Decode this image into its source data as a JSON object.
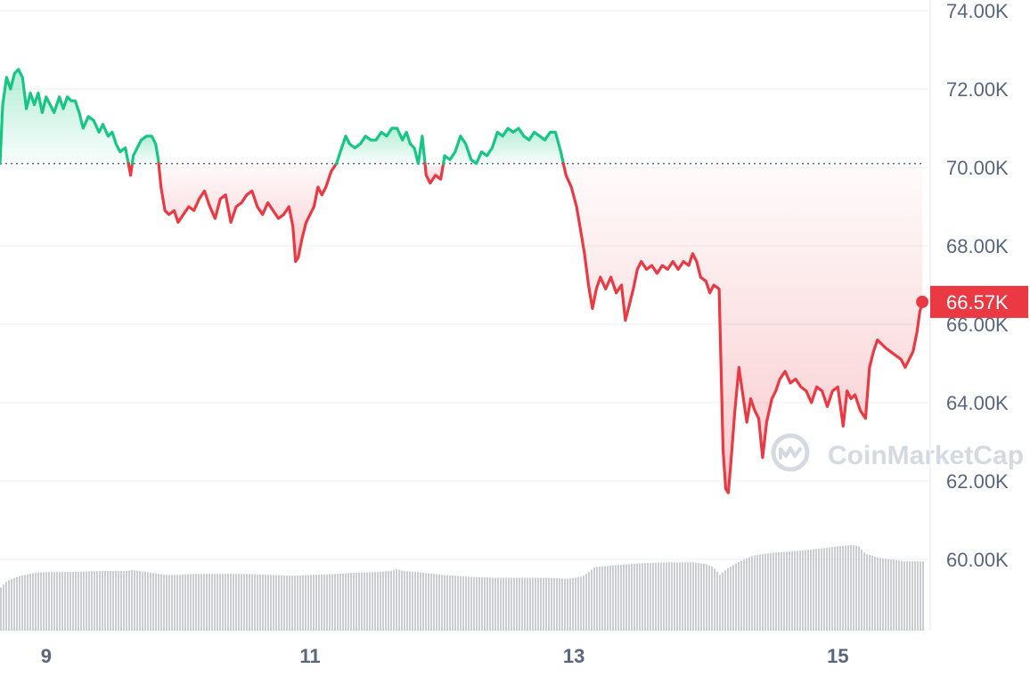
{
  "chart_data": {
    "type": "line",
    "title": "",
    "xlabel": "",
    "ylabel": "",
    "x_ticks": [
      "9",
      "11",
      "13",
      "15"
    ],
    "x_tick_values": [
      9,
      11,
      13,
      15
    ],
    "x_range": [
      8.65,
      15.7
    ],
    "y_ticks": [
      "74.00K",
      "72.00K",
      "70.00K",
      "68.00K",
      "66.00K",
      "64.00K",
      "62.00K",
      "60.00K"
    ],
    "y_tick_values": [
      74000,
      72000,
      70000,
      68000,
      66000,
      64000,
      62000,
      60000
    ],
    "ylim": [
      58700,
      74300
    ],
    "baseline": 70100,
    "grid": true,
    "current_price_label": "66.57K",
    "current_price": 66570,
    "colors": {
      "up": "#16c784",
      "down": "#ea3943",
      "grid": "#eff2f5",
      "axis_text": "#58667e",
      "volume": "#c9ccd1"
    },
    "series": [
      {
        "values": [
          [
            8.65,
            70100
          ],
          [
            8.67,
            71600
          ],
          [
            8.7,
            72300
          ],
          [
            8.73,
            72000
          ],
          [
            8.76,
            72400
          ],
          [
            8.79,
            72500
          ],
          [
            8.82,
            72300
          ],
          [
            8.85,
            71500
          ],
          [
            8.88,
            71900
          ],
          [
            8.91,
            71600
          ],
          [
            8.94,
            71900
          ],
          [
            8.97,
            71400
          ],
          [
            9.0,
            71800
          ],
          [
            9.03,
            71600
          ],
          [
            9.06,
            71400
          ],
          [
            9.1,
            71800
          ],
          [
            9.13,
            71500
          ],
          [
            9.16,
            71800
          ],
          [
            9.19,
            71700
          ],
          [
            9.22,
            71700
          ],
          [
            9.25,
            71400
          ],
          [
            9.28,
            71000
          ],
          [
            9.32,
            71300
          ],
          [
            9.36,
            71200
          ],
          [
            9.4,
            70900
          ],
          [
            9.43,
            71100
          ],
          [
            9.47,
            70800
          ],
          [
            9.5,
            70900
          ],
          [
            9.53,
            70600
          ],
          [
            9.56,
            70400
          ],
          [
            9.6,
            70500
          ],
          [
            9.64,
            69800
          ],
          [
            9.66,
            70300
          ],
          [
            9.69,
            70500
          ],
          [
            9.72,
            70700
          ],
          [
            9.76,
            70800
          ],
          [
            9.8,
            70800
          ],
          [
            9.83,
            70600
          ],
          [
            9.85,
            70200
          ],
          [
            9.87,
            69500
          ],
          [
            9.9,
            68900
          ],
          [
            9.93,
            68800
          ],
          [
            9.97,
            68900
          ],
          [
            10.0,
            68600
          ],
          [
            10.04,
            68800
          ],
          [
            10.08,
            69000
          ],
          [
            10.12,
            68900
          ],
          [
            10.16,
            69200
          ],
          [
            10.2,
            69400
          ],
          [
            10.24,
            69000
          ],
          [
            10.28,
            68700
          ],
          [
            10.32,
            69200
          ],
          [
            10.36,
            69300
          ],
          [
            10.4,
            68600
          ],
          [
            10.44,
            69000
          ],
          [
            10.48,
            69100
          ],
          [
            10.52,
            69300
          ],
          [
            10.56,
            69400
          ],
          [
            10.6,
            69000
          ],
          [
            10.64,
            68800
          ],
          [
            10.68,
            69100
          ],
          [
            10.72,
            68900
          ],
          [
            10.76,
            68700
          ],
          [
            10.8,
            68800
          ],
          [
            10.84,
            69000
          ],
          [
            10.87,
            68500
          ],
          [
            10.89,
            67600
          ],
          [
            10.91,
            67700
          ],
          [
            10.94,
            68200
          ],
          [
            10.97,
            68600
          ],
          [
            11.0,
            68800
          ],
          [
            11.03,
            69000
          ],
          [
            11.06,
            69500
          ],
          [
            11.09,
            69300
          ],
          [
            11.12,
            69500
          ],
          [
            11.16,
            69900
          ],
          [
            11.2,
            70100
          ],
          [
            11.24,
            70500
          ],
          [
            11.27,
            70800
          ],
          [
            11.3,
            70600
          ],
          [
            11.34,
            70500
          ],
          [
            11.38,
            70600
          ],
          [
            11.42,
            70800
          ],
          [
            11.46,
            70700
          ],
          [
            11.5,
            70700
          ],
          [
            11.54,
            70900
          ],
          [
            11.58,
            70800
          ],
          [
            11.62,
            71000
          ],
          [
            11.66,
            71000
          ],
          [
            11.7,
            70700
          ],
          [
            11.73,
            70900
          ],
          [
            11.76,
            70600
          ],
          [
            11.79,
            70500
          ],
          [
            11.82,
            70100
          ],
          [
            11.85,
            70800
          ],
          [
            11.88,
            69800
          ],
          [
            11.91,
            69600
          ],
          [
            11.95,
            69800
          ],
          [
            11.99,
            69700
          ],
          [
            12.02,
            70300
          ],
          [
            12.06,
            70200
          ],
          [
            12.1,
            70400
          ],
          [
            12.14,
            70800
          ],
          [
            12.18,
            70600
          ],
          [
            12.22,
            70200
          ],
          [
            12.26,
            70100
          ],
          [
            12.3,
            70400
          ],
          [
            12.34,
            70300
          ],
          [
            12.38,
            70500
          ],
          [
            12.42,
            70900
          ],
          [
            12.46,
            70800
          ],
          [
            12.5,
            71000
          ],
          [
            12.54,
            70900
          ],
          [
            12.58,
            71000
          ],
          [
            12.62,
            70800
          ],
          [
            12.66,
            70700
          ],
          [
            12.7,
            70900
          ],
          [
            12.74,
            70800
          ],
          [
            12.78,
            70700
          ],
          [
            12.82,
            70900
          ],
          [
            12.86,
            70900
          ],
          [
            12.9,
            70400
          ],
          [
            12.94,
            69800
          ],
          [
            12.98,
            69500
          ],
          [
            13.02,
            69000
          ],
          [
            13.05,
            68400
          ],
          [
            13.08,
            67800
          ],
          [
            13.11,
            67000
          ],
          [
            13.14,
            66400
          ],
          [
            13.17,
            66900
          ],
          [
            13.2,
            67200
          ],
          [
            13.24,
            66900
          ],
          [
            13.28,
            67200
          ],
          [
            13.32,
            66800
          ],
          [
            13.36,
            67000
          ],
          [
            13.39,
            66100
          ],
          [
            13.42,
            66500
          ],
          [
            13.45,
            66900
          ],
          [
            13.48,
            67400
          ],
          [
            13.51,
            67600
          ],
          [
            13.55,
            67400
          ],
          [
            13.59,
            67500
          ],
          [
            13.63,
            67300
          ],
          [
            13.67,
            67500
          ],
          [
            13.71,
            67400
          ],
          [
            13.75,
            67600
          ],
          [
            13.79,
            67400
          ],
          [
            13.83,
            67600
          ],
          [
            13.87,
            67500
          ],
          [
            13.9,
            67800
          ],
          [
            13.93,
            67600
          ],
          [
            13.96,
            67200
          ],
          [
            14.0,
            67100
          ],
          [
            14.03,
            66800
          ],
          [
            14.06,
            67000
          ],
          [
            14.1,
            66900
          ],
          [
            14.13,
            62800
          ],
          [
            14.15,
            61800
          ],
          [
            14.17,
            61700
          ],
          [
            14.19,
            62500
          ],
          [
            14.22,
            63800
          ],
          [
            14.25,
            64900
          ],
          [
            14.28,
            64200
          ],
          [
            14.31,
            63500
          ],
          [
            14.34,
            64100
          ],
          [
            14.37,
            63800
          ],
          [
            14.4,
            63600
          ],
          [
            14.43,
            62600
          ],
          [
            14.46,
            63500
          ],
          [
            14.5,
            64100
          ],
          [
            14.53,
            64300
          ],
          [
            14.56,
            64600
          ],
          [
            14.6,
            64800
          ],
          [
            14.64,
            64500
          ],
          [
            14.68,
            64600
          ],
          [
            14.72,
            64400
          ],
          [
            14.76,
            64300
          ],
          [
            14.8,
            64000
          ],
          [
            14.84,
            64400
          ],
          [
            14.88,
            64300
          ],
          [
            14.92,
            63900
          ],
          [
            14.96,
            64300
          ],
          [
            15.0,
            64400
          ],
          [
            15.04,
            63400
          ],
          [
            15.07,
            64300
          ],
          [
            15.1,
            64100
          ],
          [
            15.13,
            64200
          ],
          [
            15.17,
            63800
          ],
          [
            15.21,
            63600
          ],
          [
            15.24,
            64900
          ],
          [
            15.27,
            65300
          ],
          [
            15.3,
            65600
          ],
          [
            15.33,
            65500
          ],
          [
            15.36,
            65400
          ],
          [
            15.4,
            65300
          ],
          [
            15.44,
            65200
          ],
          [
            15.48,
            65100
          ],
          [
            15.51,
            64900
          ],
          [
            15.54,
            65100
          ],
          [
            15.57,
            65300
          ],
          [
            15.6,
            65800
          ],
          [
            15.62,
            66300
          ],
          [
            15.64,
            66570
          ]
        ]
      }
    ],
    "volume": {
      "range": [
        0,
        100
      ],
      "values": [
        [
          8.65,
          45
        ],
        [
          8.7,
          52
        ],
        [
          8.8,
          57
        ],
        [
          8.9,
          60
        ],
        [
          9.0,
          61
        ],
        [
          9.2,
          61
        ],
        [
          9.4,
          62
        ],
        [
          9.6,
          62
        ],
        [
          9.65,
          63
        ],
        [
          9.8,
          60
        ],
        [
          9.9,
          58
        ],
        [
          10.0,
          58
        ],
        [
          10.1,
          59
        ],
        [
          10.3,
          59
        ],
        [
          10.5,
          59
        ],
        [
          10.7,
          58
        ],
        [
          10.85,
          57
        ],
        [
          11.0,
          58
        ],
        [
          11.2,
          59
        ],
        [
          11.3,
          60
        ],
        [
          11.5,
          61
        ],
        [
          11.6,
          62
        ],
        [
          11.65,
          64
        ],
        [
          11.7,
          62
        ],
        [
          11.8,
          61
        ],
        [
          12.0,
          58
        ],
        [
          12.2,
          56
        ],
        [
          12.4,
          55
        ],
        [
          12.6,
          55
        ],
        [
          12.8,
          55
        ],
        [
          12.95,
          54
        ],
        [
          13.05,
          56
        ],
        [
          13.1,
          60
        ],
        [
          13.15,
          66
        ],
        [
          13.3,
          68
        ],
        [
          13.5,
          70
        ],
        [
          13.7,
          71
        ],
        [
          13.9,
          71
        ],
        [
          14.0,
          69
        ],
        [
          14.05,
          66
        ],
        [
          14.1,
          58
        ],
        [
          14.15,
          64
        ],
        [
          14.25,
          72
        ],
        [
          14.35,
          78
        ],
        [
          14.5,
          81
        ],
        [
          14.7,
          83
        ],
        [
          14.9,
          86
        ],
        [
          15.0,
          88
        ],
        [
          15.1,
          89
        ],
        [
          15.15,
          88
        ],
        [
          15.2,
          80
        ],
        [
          15.3,
          76
        ],
        [
          15.5,
          72
        ],
        [
          15.64,
          72
        ]
      ]
    }
  },
  "watermark": {
    "text": "CoinMarketCap",
    "icon": "coinmarketcap-logo-icon"
  }
}
